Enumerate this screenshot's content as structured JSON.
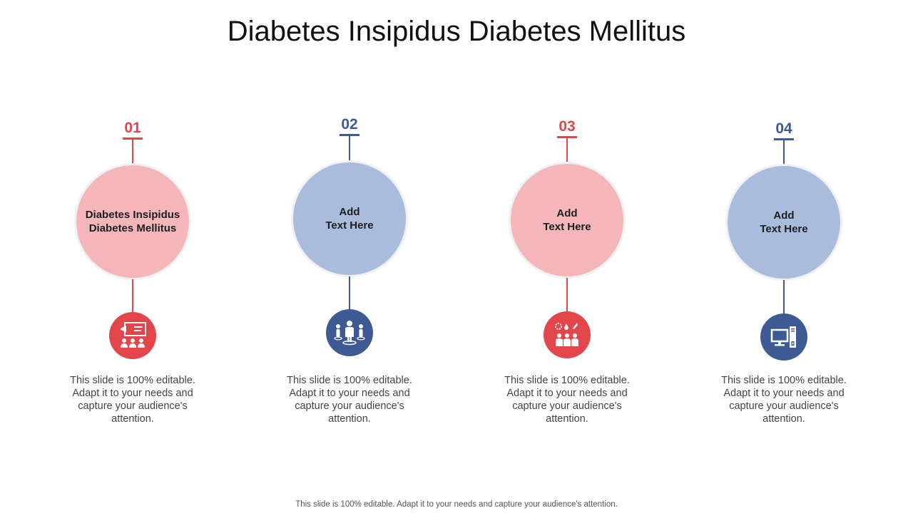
{
  "title": "Diabetes Insipidus Diabetes Mellitus",
  "colors": {
    "red": "#E2454A",
    "blue": "#3E5A92",
    "light_red": "#F4B6B8",
    "light_blue": "#A9BCDB"
  },
  "steps": [
    {
      "number": "01",
      "circle_text": "Diabetes Insipidus\nDiabetes Mellitus",
      "icon": "presentation-audience-icon",
      "description": "This slide is 100% editable. Adapt it to your needs and capture your audience's attention."
    },
    {
      "number": "02",
      "circle_text": "Add\nText Here",
      "icon": "team-leader-icon",
      "description": "This slide is 100% editable. Adapt it to your needs and capture your audience's attention."
    },
    {
      "number": "03",
      "circle_text": "Add\nText Here",
      "icon": "group-ideas-icon",
      "description": "This slide is 100% editable. Adapt it to your needs and capture your audience's attention."
    },
    {
      "number": "04",
      "circle_text": "Add\nText Here",
      "icon": "desktop-computer-icon",
      "description": "This slide is 100% editable. Adapt it to your needs and capture your audience's attention."
    }
  ],
  "footer": "This slide is 100% editable. Adapt it to your needs and capture your audience's attention."
}
